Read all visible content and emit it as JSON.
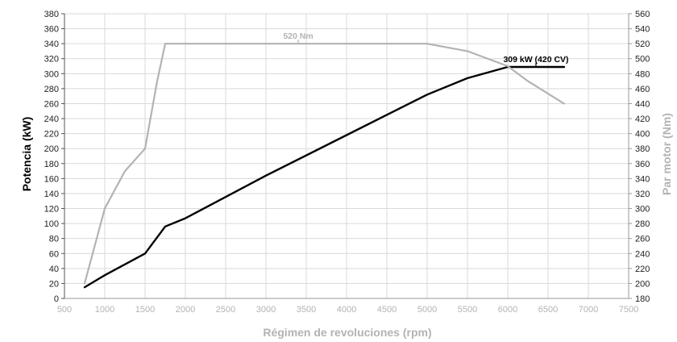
{
  "chart_data": {
    "type": "line",
    "title": "",
    "xlabel": "Régimen de revoluciones (rpm)",
    "ylabel_left": "Potencia (kW)",
    "ylabel_right": "Par motor (Nm)",
    "xlim": [
      500,
      7500
    ],
    "ylim_left": [
      0,
      380
    ],
    "ylim_right": [
      180,
      560
    ],
    "x_ticks": [
      500,
      1000,
      1500,
      2000,
      2500,
      3000,
      3500,
      4000,
      4500,
      5000,
      5500,
      6000,
      6500,
      7000,
      7500
    ],
    "y_ticks_left": [
      0,
      20,
      40,
      60,
      80,
      100,
      120,
      140,
      160,
      180,
      200,
      220,
      240,
      260,
      280,
      300,
      320,
      340,
      360,
      380
    ],
    "y_ticks_right": [
      180,
      200,
      220,
      240,
      260,
      280,
      300,
      320,
      340,
      360,
      380,
      400,
      420,
      440,
      460,
      480,
      500,
      520,
      540,
      560
    ],
    "grid": true,
    "colors": {
      "power": "#000000",
      "torque": "#b3b3b3",
      "grid": "#d9d9d9",
      "tick_text": "#b3b3b3",
      "left_title": "#000000",
      "right_title": "#b3b3b3",
      "x_title": "#b3b3b3"
    },
    "series": [
      {
        "key": "power",
        "axis": "left",
        "x": [
          750,
          1000,
          1500,
          1750,
          2000,
          3000,
          4000,
          5000,
          5500,
          6000,
          6700
        ],
        "y": [
          15,
          31,
          60,
          96,
          107,
          164,
          218,
          272,
          294,
          309,
          309
        ]
      },
      {
        "key": "torque",
        "axis": "right",
        "x": [
          750,
          1000,
          1250,
          1500,
          1650,
          1750,
          5000,
          5500,
          6000,
          6250,
          6700
        ],
        "y": [
          200,
          300,
          350,
          380,
          470,
          520,
          520,
          510,
          490,
          470,
          440
        ]
      }
    ],
    "annotations": [
      {
        "text": "520 Nm",
        "series": "torque",
        "x": 3400,
        "y": 520
      },
      {
        "text": "309 kW (420 CV)",
        "series": "power",
        "x": 6350,
        "y": 309
      }
    ]
  }
}
